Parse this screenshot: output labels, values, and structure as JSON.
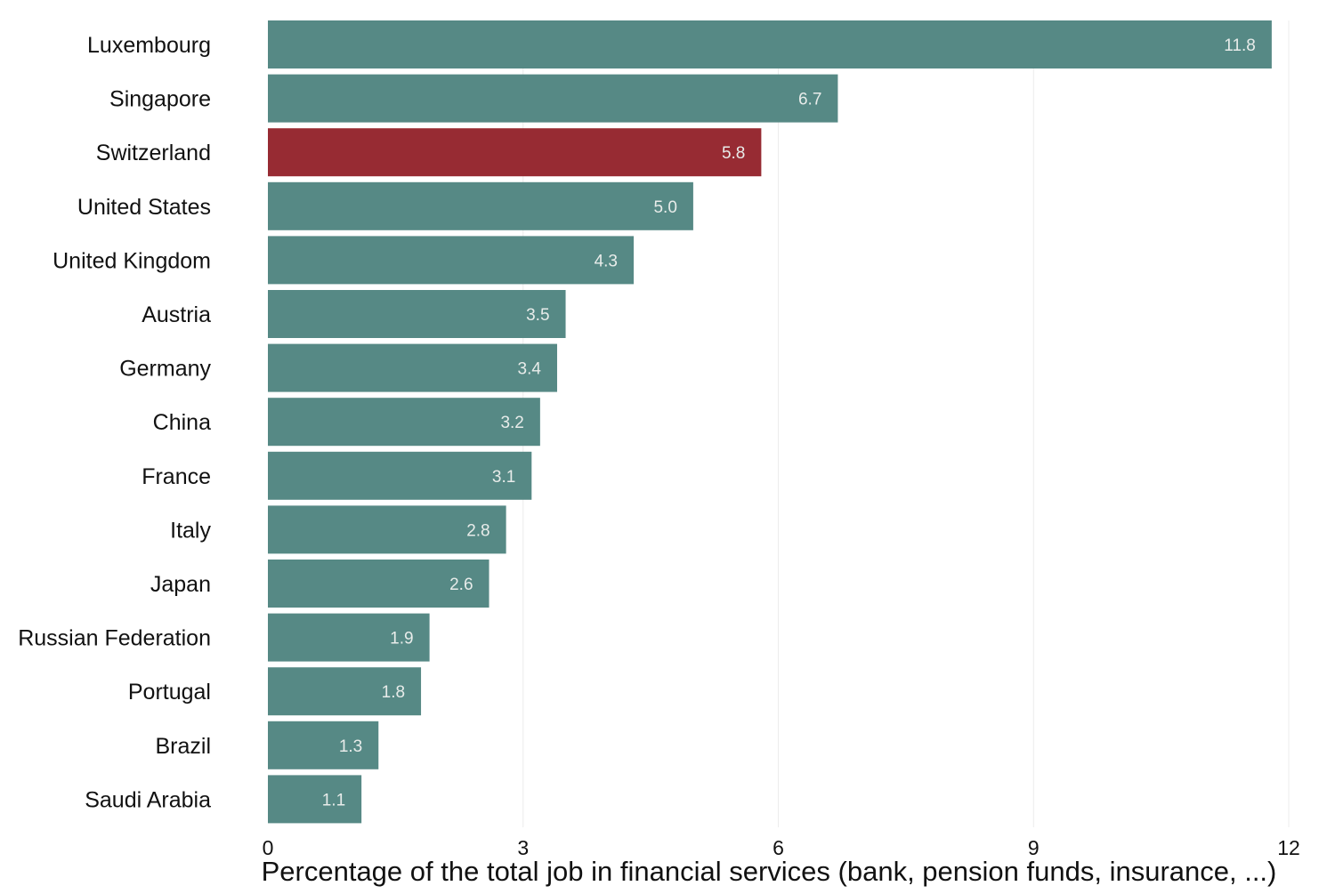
{
  "chart_data": {
    "type": "bar",
    "orientation": "horizontal",
    "categories": [
      "Luxembourg",
      "Singapore",
      "Switzerland",
      "United States",
      "United Kingdom",
      "Austria",
      "Germany",
      "China",
      "France",
      "Italy",
      "Japan",
      "Russian Federation",
      "Portugal",
      "Brazil",
      "Saudi Arabia"
    ],
    "values": [
      11.8,
      6.7,
      5.8,
      5.0,
      4.3,
      3.5,
      3.4,
      3.2,
      3.1,
      2.8,
      2.6,
      1.9,
      1.8,
      1.3,
      1.1
    ],
    "value_labels": [
      "11.8",
      "6.7",
      "5.8",
      "5.0",
      "4.3",
      "3.5",
      "3.4",
      "3.2",
      "3.1",
      "2.8",
      "2.6",
      "1.9",
      "1.8",
      "1.3",
      "1.1"
    ],
    "highlight_category": "Switzerland",
    "title": "",
    "xlabel": "Percentage of the total job in financial services (bank, pension funds, insurance, ...)",
    "ylabel": "",
    "xlim": [
      0,
      12
    ],
    "xticks": [
      0,
      3,
      6,
      9,
      12
    ],
    "xtick_labels": [
      "0",
      "3",
      "6",
      "9",
      "12"
    ],
    "grid": "vertical",
    "legend": "none"
  },
  "colors": {
    "bar": "#568985",
    "highlight": "#972b33",
    "value_label": "#e8ecea",
    "grid": "#ececec",
    "text": "#111111"
  }
}
